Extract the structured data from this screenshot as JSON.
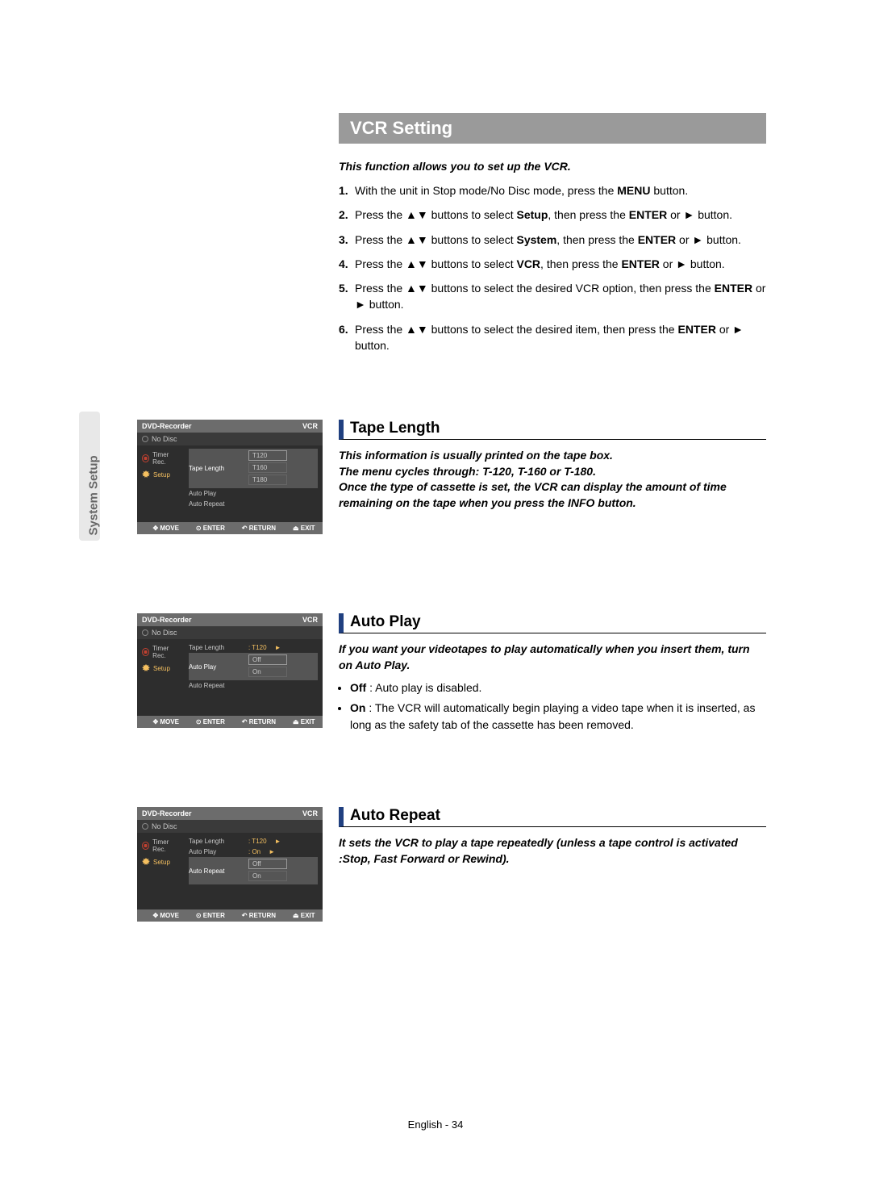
{
  "side_tab": "System Setup",
  "title": "VCR Setting",
  "intro": "This function allows you to set up the VCR.",
  "steps": [
    {
      "n": "1.",
      "pre": "With the unit in Stop mode/No Disc mode, press the ",
      "b": "MENU",
      "post": " button."
    },
    {
      "n": "2.",
      "pre": "Press the ▲▼ buttons to select ",
      "b": "Setup",
      "post": ", then press the ",
      "b2": "ENTER",
      "post2": " or ► button."
    },
    {
      "n": "3.",
      "pre": "Press the ▲▼ buttons to select ",
      "b": "System",
      "post": ", then press the ",
      "b2": "ENTER",
      "post2": " or ► button."
    },
    {
      "n": "4.",
      "pre": "Press the ▲▼ buttons to select ",
      "b": "VCR",
      "post": ", then press the ",
      "b2": "ENTER",
      "post2": " or ► button."
    },
    {
      "n": "5.",
      "pre": "Press the ▲▼ buttons to select the desired VCR option, then press the ",
      "b": "ENTER",
      "post": " or ► button."
    },
    {
      "n": "6.",
      "pre": "Press the ▲▼ buttons to select the desired item, then press the ",
      "b": "ENTER",
      "post": " or ► button."
    }
  ],
  "sections": {
    "tape": {
      "h": "Tape Length",
      "p": "This information is usually printed on the tape box.\nThe menu cycles through: T-120, T-160 or T-180.\nOnce the type of cassette is set, the VCR can display the amount of time remaining on the tape when you press the INFO button."
    },
    "autoplay": {
      "h": "Auto Play",
      "p": "If you want your videotapes to play automatically when you insert them, turn on Auto Play.",
      "bullets": [
        {
          "b": "Off",
          "t": " : Auto play is disabled."
        },
        {
          "b": "On",
          "t": " : The VCR will automatically begin playing a video tape when it is inserted, as long as the safety tab of the cassette has been removed."
        }
      ]
    },
    "autorepeat": {
      "h": "Auto Repeat",
      "p": "It sets the VCR to play a tape repeatedly (unless a tape control is activated :Stop, Fast Forward or Rewind)."
    }
  },
  "osd_common": {
    "title": "DVD-Recorder",
    "mode": "VCR",
    "nodisc": "No Disc",
    "side": [
      {
        "l": "Timer Rec.",
        "sel": false
      },
      {
        "l": "Setup",
        "sel": true
      }
    ],
    "foot": {
      "move": "MOVE",
      "enter": "ENTER",
      "ret": "RETURN",
      "exit": "EXIT"
    }
  },
  "osd1": {
    "rows": [
      {
        "l": "Tape Length",
        "hl": true,
        "opts": [
          "T120",
          "T160",
          "T180"
        ],
        "opt_hl": 0
      },
      {
        "l": "Auto Play"
      },
      {
        "l": "Auto Repeat"
      }
    ]
  },
  "osd2": {
    "rows": [
      {
        "l": "Tape Length",
        "v": ": T120",
        "chev": true
      },
      {
        "l": "Auto Play",
        "hl": true,
        "opts": [
          "Off",
          "On"
        ],
        "opt_hl": 0
      },
      {
        "l": "Auto Repeat"
      }
    ]
  },
  "osd3": {
    "rows": [
      {
        "l": "Tape Length",
        "v": ": T120",
        "chev": true
      },
      {
        "l": "Auto Play",
        "v": ": On",
        "chev": true
      },
      {
        "l": "Auto Repeat",
        "hl": true,
        "opts": [
          "Off",
          "On"
        ],
        "opt_hl": 0
      }
    ]
  },
  "footer": "English - 34"
}
